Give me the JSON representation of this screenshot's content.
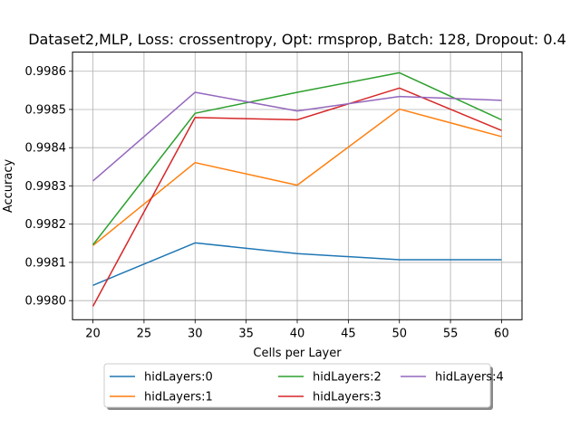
{
  "chart_data": {
    "type": "line",
    "title": "Dataset2,MLP, Loss: crossentropy, Opt: rmsprop, Batch: 128, Dropout: 0.4",
    "xlabel": "Cells per Layer",
    "ylabel": "Accuracy",
    "x": [
      20,
      30,
      40,
      50,
      60
    ],
    "xlim": [
      18,
      62
    ],
    "ylim": [
      0.99795,
      0.99865
    ],
    "xticks": [
      "20",
      "25",
      "30",
      "35",
      "40",
      "45",
      "50",
      "55",
      "60"
    ],
    "yticks": [
      "0.9980",
      "0.9981",
      "0.9982",
      "0.9983",
      "0.9984",
      "0.9985",
      "0.9986"
    ],
    "grid": true,
    "legend_placement": "bottom-center",
    "series": [
      {
        "name": "hidLayers:0",
        "color": "#1f77b4",
        "values": [
          0.99804,
          0.998151,
          0.998123,
          0.998107,
          0.998107
        ]
      },
      {
        "name": "hidLayers:1",
        "color": "#ff7f0e",
        "values": [
          0.998144,
          0.998361,
          0.998302,
          0.998501,
          0.998429
        ]
      },
      {
        "name": "hidLayers:2",
        "color": "#2ca02c",
        "values": [
          0.998146,
          0.99849,
          0.998545,
          0.998596,
          0.998473
        ]
      },
      {
        "name": "hidLayers:3",
        "color": "#d62728",
        "values": [
          0.997985,
          0.998479,
          0.998473,
          0.998556,
          0.998445
        ]
      },
      {
        "name": "hidLayers:4",
        "color": "#9467bd",
        "values": [
          0.998313,
          0.998545,
          0.998496,
          0.998534,
          0.998524
        ]
      }
    ]
  }
}
